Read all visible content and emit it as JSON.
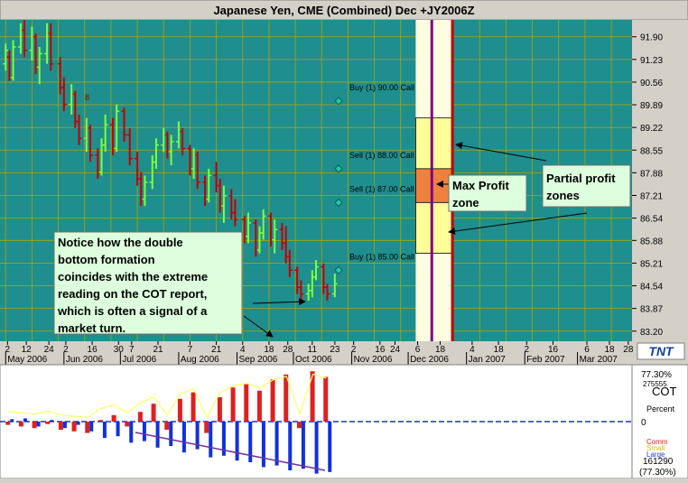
{
  "window": {
    "title": "Japanese Yen, CME (Combined) Dec +JY2006Z"
  },
  "colors": {
    "plot_bg": "#1f8e8e",
    "grid": "#a8a800",
    "up_bar": "#7dff3a",
    "down_bar": "#c40000",
    "note_bg": "#ddffdd",
    "zone_partial": "#ffff99",
    "zone_max": "#f08040",
    "strike_marker": "#1fc8a0",
    "cot_up": "#e02020",
    "cot_down": "#1030e0",
    "cot_line": "#ffff60"
  },
  "price_axis": {
    "ticks": [
      "91.90",
      "91.23",
      "90.56",
      "89.89",
      "89.22",
      "88.55",
      "87.88",
      "87.21",
      "86.54",
      "85.88",
      "85.21",
      "84.54",
      "83.87",
      "83.20"
    ]
  },
  "time_axis": {
    "days": [
      "2",
      "12",
      "24",
      "2",
      "16",
      "30",
      "7",
      "21",
      "7",
      "21",
      "4",
      "18",
      "28",
      "11",
      "23",
      "2",
      "16",
      "24",
      "6",
      "18",
      "4",
      "18",
      "2",
      "16",
      "6",
      "18",
      "28"
    ],
    "months": [
      "May 2006",
      "Jun 2006",
      "Jul 2006",
      "Aug 2006",
      "Sep 2006",
      "Oct 2006",
      "Nov 2006",
      "Dec 2006",
      "Jan 2007",
      "Feb 2007",
      "Mar 2007"
    ]
  },
  "options": [
    {
      "label": "Buy (1) 90.00 Call",
      "strike": 90.0
    },
    {
      "label": "Sell (1) 88.00 Call",
      "strike": 88.0
    },
    {
      "label": "Sell (1) 87.00 Call",
      "strike": 87.0
    },
    {
      "label": "Buy (1) 85.00 Call",
      "strike": 85.0
    }
  ],
  "annotations": {
    "note": [
      "Notice how the double",
      "bottom formation",
      "coincides with the extreme",
      "reading on the COT report,",
      "which is often a signal of a",
      "market turn."
    ],
    "max_profit": [
      "Max Profit",
      "zone"
    ],
    "partial_profit": [
      "Partial profit",
      "zones"
    ],
    "bar_marker": "8"
  },
  "logo": "TNT",
  "cot_panel": {
    "label": "COT",
    "sub_label": "Percent",
    "zero": "0",
    "top_value": "77.30%",
    "top_value2": "275555",
    "bottom_value": "161290",
    "bottom_value2": "(77.30%)",
    "legend": [
      "Comm",
      "Small",
      "Large"
    ]
  },
  "chart_data": {
    "type": "bar",
    "title": "Japanese Yen, CME (Combined) Dec +JY2006Z",
    "ylim": [
      82.9,
      92.4
    ],
    "x_range": [
      "2006-04-28",
      "2007-03-30"
    ],
    "bars": [
      {
        "d": "2006-05-01",
        "o": 91.1,
        "h": 91.7,
        "l": 90.9,
        "c": 91.5
      },
      {
        "d": "2006-05-03",
        "o": 91.3,
        "h": 91.5,
        "l": 90.6,
        "c": 90.7
      },
      {
        "d": "2006-05-05",
        "o": 90.7,
        "h": 91.8,
        "l": 90.6,
        "c": 91.6
      },
      {
        "d": "2006-05-09",
        "o": 91.6,
        "h": 92.3,
        "l": 91.4,
        "c": 92.1
      },
      {
        "d": "2006-05-11",
        "o": 92.1,
        "h": 92.4,
        "l": 91.3,
        "c": 91.5
      },
      {
        "d": "2006-05-15",
        "o": 91.5,
        "h": 92.2,
        "l": 91.2,
        "c": 91.9
      },
      {
        "d": "2006-05-17",
        "o": 91.9,
        "h": 92.0,
        "l": 90.8,
        "c": 91.0
      },
      {
        "d": "2006-05-19",
        "o": 91.0,
        "h": 91.6,
        "l": 90.5,
        "c": 91.4
      },
      {
        "d": "2006-05-23",
        "o": 91.4,
        "h": 92.3,
        "l": 91.1,
        "c": 92.0
      },
      {
        "d": "2006-05-25",
        "o": 92.0,
        "h": 92.3,
        "l": 90.9,
        "c": 91.1
      },
      {
        "d": "2006-05-30",
        "o": 91.1,
        "h": 91.3,
        "l": 90.2,
        "c": 90.4
      },
      {
        "d": "2006-06-01",
        "o": 90.4,
        "h": 90.7,
        "l": 89.7,
        "c": 89.9
      },
      {
        "d": "2006-06-05",
        "o": 89.9,
        "h": 90.5,
        "l": 89.6,
        "c": 90.2
      },
      {
        "d": "2006-06-07",
        "o": 90.2,
        "h": 90.3,
        "l": 89.2,
        "c": 89.4
      },
      {
        "d": "2006-06-09",
        "o": 89.4,
        "h": 89.6,
        "l": 88.7,
        "c": 88.9
      },
      {
        "d": "2006-06-13",
        "o": 88.9,
        "h": 89.5,
        "l": 88.5,
        "c": 89.2
      },
      {
        "d": "2006-06-15",
        "o": 89.2,
        "h": 89.3,
        "l": 88.2,
        "c": 88.4
      },
      {
        "d": "2006-06-19",
        "o": 88.4,
        "h": 88.6,
        "l": 87.7,
        "c": 87.9
      },
      {
        "d": "2006-06-21",
        "o": 87.9,
        "h": 88.9,
        "l": 87.8,
        "c": 88.7
      },
      {
        "d": "2006-06-23",
        "o": 88.7,
        "h": 89.6,
        "l": 88.5,
        "c": 89.3
      },
      {
        "d": "2006-06-27",
        "o": 89.3,
        "h": 89.5,
        "l": 88.4,
        "c": 88.6
      },
      {
        "d": "2006-06-29",
        "o": 88.6,
        "h": 89.9,
        "l": 88.5,
        "c": 89.7
      },
      {
        "d": "2006-07-03",
        "o": 89.7,
        "h": 89.8,
        "l": 88.8,
        "c": 89.0
      },
      {
        "d": "2006-07-06",
        "o": 89.0,
        "h": 89.2,
        "l": 88.1,
        "c": 88.3
      },
      {
        "d": "2006-07-10",
        "o": 88.3,
        "h": 88.5,
        "l": 87.5,
        "c": 87.7
      },
      {
        "d": "2006-07-12",
        "o": 87.7,
        "h": 87.9,
        "l": 86.9,
        "c": 87.1
      },
      {
        "d": "2006-07-14",
        "o": 87.1,
        "h": 87.8,
        "l": 86.9,
        "c": 87.6
      },
      {
        "d": "2006-07-18",
        "o": 87.6,
        "h": 88.4,
        "l": 87.4,
        "c": 88.2
      },
      {
        "d": "2006-07-20",
        "o": 88.2,
        "h": 88.9,
        "l": 88.0,
        "c": 88.7
      },
      {
        "d": "2006-07-24",
        "o": 88.7,
        "h": 89.2,
        "l": 88.5,
        "c": 89.0
      },
      {
        "d": "2006-07-26",
        "o": 89.0,
        "h": 89.1,
        "l": 88.3,
        "c": 88.5
      },
      {
        "d": "2006-07-28",
        "o": 88.5,
        "h": 89.0,
        "l": 88.1,
        "c": 88.8
      },
      {
        "d": "2006-08-01",
        "o": 88.8,
        "h": 89.4,
        "l": 88.6,
        "c": 89.1
      },
      {
        "d": "2006-08-03",
        "o": 89.1,
        "h": 89.2,
        "l": 88.4,
        "c": 88.6
      },
      {
        "d": "2006-08-07",
        "o": 88.6,
        "h": 88.7,
        "l": 87.8,
        "c": 88.0
      },
      {
        "d": "2006-08-09",
        "o": 88.0,
        "h": 88.6,
        "l": 87.7,
        "c": 88.4
      },
      {
        "d": "2006-08-11",
        "o": 88.4,
        "h": 88.5,
        "l": 87.4,
        "c": 87.6
      },
      {
        "d": "2006-08-15",
        "o": 87.6,
        "h": 87.8,
        "l": 86.9,
        "c": 87.1
      },
      {
        "d": "2006-08-17",
        "o": 87.1,
        "h": 88.0,
        "l": 87.0,
        "c": 87.8
      },
      {
        "d": "2006-08-21",
        "o": 87.8,
        "h": 88.2,
        "l": 87.3,
        "c": 87.5
      },
      {
        "d": "2006-08-23",
        "o": 87.5,
        "h": 87.7,
        "l": 86.7,
        "c": 86.9
      },
      {
        "d": "2006-08-25",
        "o": 86.9,
        "h": 87.5,
        "l": 86.4,
        "c": 87.2
      },
      {
        "d": "2006-08-29",
        "o": 87.2,
        "h": 87.4,
        "l": 86.5,
        "c": 86.7
      },
      {
        "d": "2006-08-31",
        "o": 86.7,
        "h": 87.1,
        "l": 86.3,
        "c": 86.5
      },
      {
        "d": "2006-09-05",
        "o": 86.5,
        "h": 86.6,
        "l": 85.8,
        "c": 86.0
      },
      {
        "d": "2006-09-07",
        "o": 86.0,
        "h": 86.7,
        "l": 85.8,
        "c": 86.4
      },
      {
        "d": "2006-09-11",
        "o": 86.4,
        "h": 86.5,
        "l": 85.4,
        "c": 85.6
      },
      {
        "d": "2006-09-13",
        "o": 85.6,
        "h": 86.3,
        "l": 85.5,
        "c": 86.1
      },
      {
        "d": "2006-09-15",
        "o": 86.1,
        "h": 86.8,
        "l": 85.9,
        "c": 86.6
      },
      {
        "d": "2006-09-19",
        "o": 86.6,
        "h": 86.7,
        "l": 85.7,
        "c": 85.9
      },
      {
        "d": "2006-09-21",
        "o": 85.9,
        "h": 86.5,
        "l": 85.5,
        "c": 86.2
      },
      {
        "d": "2006-09-25",
        "o": 86.2,
        "h": 86.4,
        "l": 85.6,
        "c": 85.8
      },
      {
        "d": "2006-09-27",
        "o": 85.8,
        "h": 86.3,
        "l": 85.2,
        "c": 85.4
      },
      {
        "d": "2006-09-29",
        "o": 85.4,
        "h": 85.6,
        "l": 84.8,
        "c": 85.0
      },
      {
        "d": "2006-10-03",
        "o": 85.0,
        "h": 85.1,
        "l": 84.3,
        "c": 84.5
      },
      {
        "d": "2006-10-05",
        "o": 84.5,
        "h": 84.7,
        "l": 84.1,
        "c": 84.3
      },
      {
        "d": "2006-10-09",
        "o": 84.3,
        "h": 84.6,
        "l": 84.1,
        "c": 84.4
      },
      {
        "d": "2006-10-11",
        "o": 84.4,
        "h": 85.0,
        "l": 84.2,
        "c": 84.8
      },
      {
        "d": "2006-10-13",
        "o": 84.8,
        "h": 85.3,
        "l": 84.7,
        "c": 85.1
      },
      {
        "d": "2006-10-17",
        "o": 85.1,
        "h": 85.2,
        "l": 84.3,
        "c": 84.5
      },
      {
        "d": "2006-10-19",
        "o": 84.5,
        "h": 84.6,
        "l": 84.1,
        "c": 84.3
      },
      {
        "d": "2006-10-23",
        "o": 84.3,
        "h": 84.9,
        "l": 84.2,
        "c": 84.6
      }
    ],
    "zones": [
      {
        "label": "partial",
        "from": 88.0,
        "to": 89.5
      },
      {
        "label": "max",
        "from": 87.0,
        "to": 88.0
      },
      {
        "label": "partial",
        "from": 85.5,
        "to": 87.0
      }
    ],
    "cot_series": {
      "months": [
        "May 2006",
        "Jun 2006",
        "Jul 2006",
        "Aug 2006",
        "Sep 2006",
        "Oct 2006"
      ],
      "comm": [
        -2,
        -4,
        12,
        22,
        30,
        46,
        55
      ],
      "large": [
        2,
        -6,
        -15,
        -28,
        -40,
        -52,
        -62
      ]
    }
  }
}
